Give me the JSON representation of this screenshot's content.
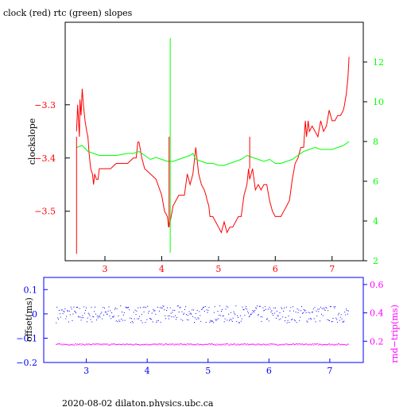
{
  "title": "clock (red) rtc (green) slopes",
  "footer": "2020-08-02  dilaton.physics.ubc.ca",
  "colors": {
    "clock": "#ff0000",
    "rtc": "#00ff00",
    "offset": "#0000ff",
    "rndtrip": "#ff00ff",
    "frame": "#000000"
  },
  "chart_data": [
    {
      "type": "line",
      "title": "clock (red) rtc (green) slopes",
      "ylabel": "clockslope",
      "xlim": [
        2.3,
        7.55
      ],
      "ylim": [
        -3.593,
        -3.145
      ],
      "y2lim": [
        2.0,
        14.0
      ],
      "x_ticks": [
        3,
        4,
        5,
        6,
        7
      ],
      "y_ticks": [
        -3.5,
        -3.4,
        -3.3
      ],
      "y2_ticks": [
        2,
        4,
        6,
        8,
        10,
        12
      ],
      "series": [
        {
          "name": "clock",
          "axis": "left",
          "color": "#ff0000",
          "points": [
            [
              2.5,
              -3.35
            ],
            [
              2.52,
              -3.3
            ],
            [
              2.55,
              -3.36
            ],
            [
              2.56,
              -3.29
            ],
            [
              2.58,
              -3.32
            ],
            [
              2.6,
              -3.27
            ],
            [
              2.62,
              -3.3
            ],
            [
              2.65,
              -3.33
            ],
            [
              2.68,
              -3.35
            ],
            [
              2.7,
              -3.36
            ],
            [
              2.72,
              -3.39
            ],
            [
              2.75,
              -3.42
            ],
            [
              2.78,
              -3.43
            ],
            [
              2.8,
              -3.45
            ],
            [
              2.82,
              -3.43
            ],
            [
              2.85,
              -3.44
            ],
            [
              2.88,
              -3.44
            ],
            [
              2.9,
              -3.42
            ],
            [
              3.0,
              -3.42
            ],
            [
              3.1,
              -3.42
            ],
            [
              3.2,
              -3.41
            ],
            [
              3.3,
              -3.41
            ],
            [
              3.4,
              -3.41
            ],
            [
              3.5,
              -3.4
            ],
            [
              3.55,
              -3.4
            ],
            [
              3.58,
              -3.37
            ],
            [
              3.6,
              -3.37
            ],
            [
              3.65,
              -3.4
            ],
            [
              3.7,
              -3.42
            ],
            [
              3.8,
              -3.43
            ],
            [
              3.9,
              -3.44
            ],
            [
              4.0,
              -3.47
            ],
            [
              4.05,
              -3.5
            ],
            [
              4.1,
              -3.51
            ],
            [
              4.12,
              -3.53
            ],
            [
              4.15,
              -3.52
            ],
            [
              4.2,
              -3.49
            ],
            [
              4.3,
              -3.47
            ],
            [
              4.4,
              -3.47
            ],
            [
              4.45,
              -3.43
            ],
            [
              4.5,
              -3.45
            ],
            [
              4.55,
              -3.43
            ],
            [
              4.6,
              -3.38
            ],
            [
              4.65,
              -3.43
            ],
            [
              4.7,
              -3.45
            ],
            [
              4.75,
              -3.46
            ],
            [
              4.78,
              -3.47
            ],
            [
              4.8,
              -3.48
            ],
            [
              4.83,
              -3.49
            ],
            [
              4.85,
              -3.51
            ],
            [
              4.9,
              -3.51
            ],
            [
              4.95,
              -3.52
            ],
            [
              5.0,
              -3.53
            ],
            [
              5.05,
              -3.54
            ],
            [
              5.1,
              -3.52
            ],
            [
              5.15,
              -3.54
            ],
            [
              5.2,
              -3.53
            ],
            [
              5.25,
              -3.53
            ],
            [
              5.3,
              -3.52
            ],
            [
              5.35,
              -3.51
            ],
            [
              5.4,
              -3.51
            ],
            [
              5.45,
              -3.47
            ],
            [
              5.5,
              -3.45
            ],
            [
              5.53,
              -3.42
            ],
            [
              5.55,
              -3.44
            ],
            [
              5.6,
              -3.42
            ],
            [
              5.65,
              -3.46
            ],
            [
              5.7,
              -3.45
            ],
            [
              5.75,
              -3.46
            ],
            [
              5.8,
              -3.45
            ],
            [
              5.85,
              -3.45
            ],
            [
              5.9,
              -3.48
            ],
            [
              5.95,
              -3.5
            ],
            [
              6.0,
              -3.51
            ],
            [
              6.05,
              -3.51
            ],
            [
              6.1,
              -3.51
            ],
            [
              6.15,
              -3.5
            ],
            [
              6.2,
              -3.49
            ],
            [
              6.25,
              -3.48
            ],
            [
              6.3,
              -3.44
            ],
            [
              6.35,
              -3.41
            ],
            [
              6.4,
              -3.4
            ],
            [
              6.45,
              -3.38
            ],
            [
              6.5,
              -3.38
            ],
            [
              6.53,
              -3.33
            ],
            [
              6.55,
              -3.36
            ],
            [
              6.58,
              -3.33
            ],
            [
              6.6,
              -3.35
            ],
            [
              6.65,
              -3.34
            ],
            [
              6.7,
              -3.35
            ],
            [
              6.75,
              -3.36
            ],
            [
              6.8,
              -3.33
            ],
            [
              6.85,
              -3.35
            ],
            [
              6.9,
              -3.34
            ],
            [
              6.95,
              -3.31
            ],
            [
              7.0,
              -3.33
            ],
            [
              7.05,
              -3.33
            ],
            [
              7.1,
              -3.32
            ],
            [
              7.15,
              -3.32
            ],
            [
              7.2,
              -3.31
            ],
            [
              7.22,
              -3.3
            ],
            [
              7.25,
              -3.28
            ],
            [
              7.28,
              -3.25
            ],
            [
              7.3,
              -3.21
            ]
          ]
        },
        {
          "name": "rtc",
          "axis": "right",
          "color": "#00ff00",
          "points": [
            [
              2.5,
              7.7
            ],
            [
              2.6,
              7.8
            ],
            [
              2.7,
              7.5
            ],
            [
              2.8,
              7.4
            ],
            [
              2.9,
              7.3
            ],
            [
              3.0,
              7.3
            ],
            [
              3.2,
              7.3
            ],
            [
              3.4,
              7.4
            ],
            [
              3.5,
              7.4
            ],
            [
              3.6,
              7.5
            ],
            [
              3.7,
              7.3
            ],
            [
              3.8,
              7.1
            ],
            [
              3.9,
              7.2
            ],
            [
              4.0,
              7.1
            ],
            [
              4.1,
              7.0
            ],
            [
              4.2,
              7.0
            ],
            [
              4.3,
              7.1
            ],
            [
              4.4,
              7.2
            ],
            [
              4.5,
              7.3
            ],
            [
              4.55,
              7.4
            ],
            [
              4.6,
              7.1
            ],
            [
              4.7,
              7.0
            ],
            [
              4.8,
              6.9
            ],
            [
              4.9,
              6.9
            ],
            [
              5.0,
              6.8
            ],
            [
              5.1,
              6.8
            ],
            [
              5.2,
              6.9
            ],
            [
              5.3,
              7.0
            ],
            [
              5.4,
              7.1
            ],
            [
              5.5,
              7.3
            ],
            [
              5.6,
              7.2
            ],
            [
              5.7,
              7.1
            ],
            [
              5.8,
              7.0
            ],
            [
              5.9,
              7.1
            ],
            [
              6.0,
              6.9
            ],
            [
              6.1,
              6.9
            ],
            [
              6.2,
              7.0
            ],
            [
              6.3,
              7.1
            ],
            [
              6.4,
              7.3
            ],
            [
              6.5,
              7.5
            ],
            [
              6.6,
              7.6
            ],
            [
              6.7,
              7.7
            ],
            [
              6.8,
              7.6
            ],
            [
              6.9,
              7.6
            ],
            [
              7.0,
              7.6
            ],
            [
              7.1,
              7.7
            ],
            [
              7.2,
              7.8
            ],
            [
              7.3,
              8.0
            ]
          ]
        }
      ]
    },
    {
      "type": "scatter",
      "ylabel": "offset(ms)",
      "y2label": "rnd−trip(ms)",
      "xlim": [
        2.3,
        7.55
      ],
      "ylim": [
        -0.2,
        0.15
      ],
      "y2lim": [
        0.05,
        0.65
      ],
      "x_ticks": [
        3,
        4,
        5,
        6,
        7
      ],
      "y_ticks": [
        -0.2,
        -0.1,
        0,
        0.1
      ],
      "y2_ticks": [
        0.2,
        0.4,
        0.6
      ],
      "series": [
        {
          "name": "offset",
          "axis": "left",
          "color": "#0000ff",
          "center": 0.0,
          "spread": 0.035
        },
        {
          "name": "rnd-trip",
          "axis": "right",
          "color": "#ff00ff",
          "center": 0.18,
          "spread": 0.005
        }
      ]
    }
  ]
}
